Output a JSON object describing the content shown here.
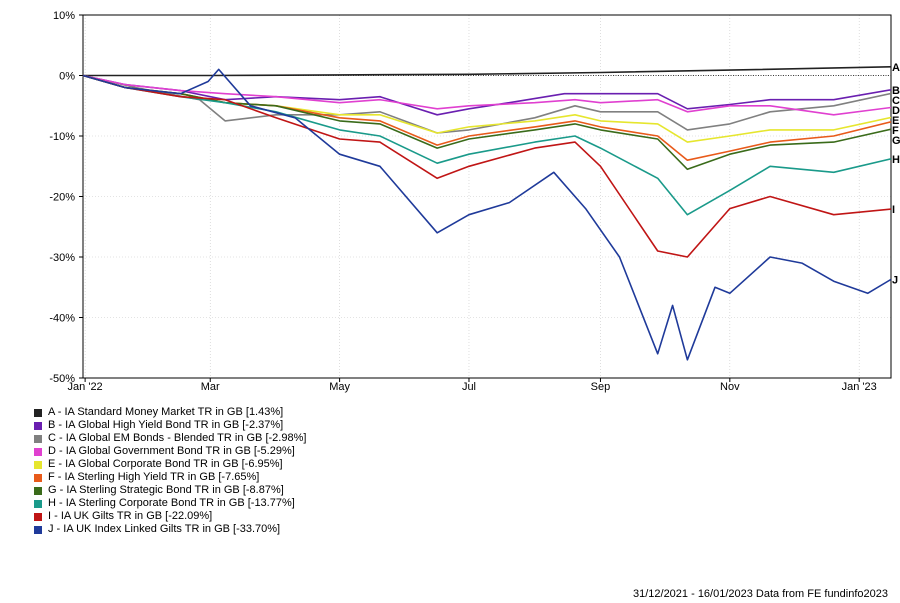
{
  "chart_data": {
    "type": "line",
    "title": "",
    "xlabel": "",
    "ylabel": "",
    "ylim": [
      -50,
      10
    ],
    "y_ticks": [
      "10%",
      "0%",
      "-10%",
      "-20%",
      "-30%",
      "-40%",
      "-50%"
    ],
    "x_range": [
      "2021-12-31",
      "2023-01-16"
    ],
    "x_ticks": [
      {
        "label": "Jan '22",
        "date": "2022-01-01"
      },
      {
        "label": "Mar",
        "date": "2022-03-01"
      },
      {
        "label": "May",
        "date": "2022-05-01"
      },
      {
        "label": "Jul",
        "date": "2022-07-01"
      },
      {
        "label": "Sep",
        "date": "2022-09-01"
      },
      {
        "label": "Nov",
        "date": "2022-11-01"
      },
      {
        "label": "Jan '23",
        "date": "2023-01-01"
      }
    ],
    "grid": true,
    "legend_position": "bottom-left",
    "reference_line": 0,
    "series": [
      {
        "key": "A",
        "name": "A - IA Standard Money Market TR in GB [1.43%]",
        "color": "#222222",
        "x": [
          "2021-12-31",
          "2022-03-01",
          "2022-05-01",
          "2022-07-01",
          "2022-09-01",
          "2022-11-01",
          "2023-01-16"
        ],
        "y": [
          0,
          0,
          0.1,
          0.2,
          0.5,
          0.9,
          1.43
        ]
      },
      {
        "key": "B",
        "name": "B - IA Global High Yield Bond TR in GB [-2.37%]",
        "color": "#6a1fb0",
        "x": [
          "2021-12-31",
          "2022-01-20",
          "2022-02-15",
          "2022-03-08",
          "2022-04-01",
          "2022-05-01",
          "2022-05-20",
          "2022-06-16",
          "2022-07-01",
          "2022-07-20",
          "2022-08-15",
          "2022-09-01",
          "2022-09-28",
          "2022-10-12",
          "2022-11-01",
          "2022-11-20",
          "2022-12-20",
          "2023-01-16"
        ],
        "y": [
          0,
          -1.5,
          -2.5,
          -4,
          -3.5,
          -4,
          -3.5,
          -6.5,
          -5.5,
          -4.5,
          -3,
          -3,
          -3,
          -5.5,
          -4.8,
          -4,
          -4,
          -2.37
        ]
      },
      {
        "key": "C",
        "name": "C - IA Global EM Bonds - Blended TR in GB [-2.98%]",
        "color": "#808080",
        "x": [
          "2021-12-31",
          "2022-01-25",
          "2022-02-24",
          "2022-03-08",
          "2022-04-01",
          "2022-05-01",
          "2022-05-20",
          "2022-06-16",
          "2022-07-01",
          "2022-08-01",
          "2022-08-20",
          "2022-09-01",
          "2022-09-28",
          "2022-10-12",
          "2022-11-01",
          "2022-11-20",
          "2022-12-20",
          "2023-01-16"
        ],
        "y": [
          0,
          -2,
          -4,
          -7.5,
          -6.5,
          -6.5,
          -6,
          -9.5,
          -9,
          -7,
          -5,
          -6,
          -6,
          -9,
          -8,
          -6,
          -5,
          -2.98
        ]
      },
      {
        "key": "D",
        "name": "D - IA Global Government Bond TR in GB [-5.29%]",
        "color": "#e040d0",
        "x": [
          "2021-12-31",
          "2022-01-20",
          "2022-02-15",
          "2022-03-08",
          "2022-04-01",
          "2022-05-01",
          "2022-05-20",
          "2022-06-16",
          "2022-07-01",
          "2022-08-01",
          "2022-08-20",
          "2022-09-01",
          "2022-09-28",
          "2022-10-12",
          "2022-11-01",
          "2022-11-20",
          "2022-12-20",
          "2023-01-16"
        ],
        "y": [
          0,
          -1.5,
          -2.5,
          -3,
          -3.5,
          -4.5,
          -4,
          -5.5,
          -5,
          -4.5,
          -4,
          -4.5,
          -4,
          -6,
          -5,
          -5,
          -6.5,
          -5.29
        ]
      },
      {
        "key": "E",
        "name": "E - IA Global Corporate Bond TR in GB [-6.95%]",
        "color": "#e6e62e",
        "x": [
          "2021-12-31",
          "2022-01-20",
          "2022-02-15",
          "2022-03-08",
          "2022-04-01",
          "2022-05-01",
          "2022-05-20",
          "2022-06-16",
          "2022-07-01",
          "2022-08-01",
          "2022-08-20",
          "2022-09-01",
          "2022-09-28",
          "2022-10-12",
          "2022-11-01",
          "2022-11-20",
          "2022-12-20",
          "2023-01-16"
        ],
        "y": [
          0,
          -2,
          -3,
          -4.5,
          -5,
          -6.5,
          -6.5,
          -9.5,
          -8.5,
          -7.5,
          -6.5,
          -7.5,
          -8,
          -11,
          -10,
          -9,
          -9,
          -6.95
        ]
      },
      {
        "key": "F",
        "name": "F - IA Sterling High Yield TR in GB [-7.65%]",
        "color": "#e85a1a",
        "x": [
          "2021-12-31",
          "2022-01-20",
          "2022-02-15",
          "2022-03-08",
          "2022-04-01",
          "2022-05-01",
          "2022-05-20",
          "2022-06-16",
          "2022-07-01",
          "2022-08-01",
          "2022-08-20",
          "2022-09-01",
          "2022-09-28",
          "2022-10-12",
          "2022-11-01",
          "2022-11-20",
          "2022-12-20",
          "2023-01-16"
        ],
        "y": [
          0,
          -2,
          -3,
          -4.5,
          -5,
          -7,
          -7.5,
          -11.5,
          -10,
          -8.5,
          -7.5,
          -8.5,
          -10,
          -14,
          -12.5,
          -11,
          -10,
          -7.65
        ]
      },
      {
        "key": "G",
        "name": "G - IA Sterling Strategic Bond TR in GB [-8.87%]",
        "color": "#3a6b1a",
        "x": [
          "2021-12-31",
          "2022-01-20",
          "2022-02-15",
          "2022-03-08",
          "2022-04-01",
          "2022-05-01",
          "2022-05-20",
          "2022-06-16",
          "2022-07-01",
          "2022-08-01",
          "2022-08-20",
          "2022-09-01",
          "2022-09-28",
          "2022-10-12",
          "2022-11-01",
          "2022-11-20",
          "2022-12-20",
          "2023-01-16"
        ],
        "y": [
          0,
          -2,
          -3,
          -4.5,
          -5,
          -7.5,
          -8,
          -12,
          -10.5,
          -9,
          -8,
          -9,
          -10.5,
          -15.5,
          -13,
          -11.5,
          -11,
          -8.87
        ]
      },
      {
        "key": "H",
        "name": "H - IA Sterling Corporate Bond TR in GB [-13.77%]",
        "color": "#1a9a8a",
        "x": [
          "2021-12-31",
          "2022-01-20",
          "2022-02-15",
          "2022-03-08",
          "2022-04-01",
          "2022-05-01",
          "2022-05-20",
          "2022-06-16",
          "2022-07-01",
          "2022-08-01",
          "2022-08-20",
          "2022-09-01",
          "2022-09-28",
          "2022-10-12",
          "2022-11-01",
          "2022-11-20",
          "2022-12-20",
          "2023-01-16"
        ],
        "y": [
          0,
          -2,
          -3.5,
          -4.5,
          -6,
          -9,
          -10,
          -14.5,
          -13,
          -11,
          -10,
          -12,
          -17,
          -23,
          -19,
          -15,
          -16,
          -13.77
        ]
      },
      {
        "key": "I",
        "name": "I - IA UK Gilts TR in GB [-22.09%]",
        "color": "#c01515",
        "x": [
          "2021-12-31",
          "2022-01-20",
          "2022-02-15",
          "2022-03-08",
          "2022-04-01",
          "2022-05-01",
          "2022-05-20",
          "2022-06-16",
          "2022-07-01",
          "2022-08-01",
          "2022-08-20",
          "2022-09-01",
          "2022-09-28",
          "2022-10-12",
          "2022-11-01",
          "2022-11-20",
          "2022-12-20",
          "2023-01-16"
        ],
        "y": [
          0,
          -2,
          -3.5,
          -4,
          -7,
          -10.5,
          -11,
          -17,
          -15,
          -12,
          -11,
          -15,
          -29,
          -30,
          -22,
          -20,
          -23,
          -22.09
        ]
      },
      {
        "key": "J",
        "name": "J - IA UK Index Linked Gilts TR in GB [-33.70%]",
        "color": "#1f3a9a",
        "x": [
          "2021-12-31",
          "2022-01-20",
          "2022-02-15",
          "2022-02-28",
          "2022-03-05",
          "2022-03-20",
          "2022-04-10",
          "2022-05-01",
          "2022-05-20",
          "2022-06-16",
          "2022-07-01",
          "2022-07-20",
          "2022-08-10",
          "2022-08-25",
          "2022-09-10",
          "2022-09-28",
          "2022-10-05",
          "2022-10-12",
          "2022-10-25",
          "2022-11-01",
          "2022-11-20",
          "2022-12-05",
          "2022-12-20",
          "2023-01-05",
          "2023-01-16"
        ],
        "y": [
          0,
          -2,
          -3,
          -1,
          1,
          -5,
          -7,
          -13,
          -15,
          -26,
          -23,
          -21,
          -16,
          -22,
          -30,
          -46,
          -38,
          -47,
          -35,
          -36,
          -30,
          -31,
          -34,
          -36,
          -33.7
        ]
      }
    ]
  },
  "footer": "31/12/2021 - 16/01/2023 Data from FE fundinfo2023"
}
